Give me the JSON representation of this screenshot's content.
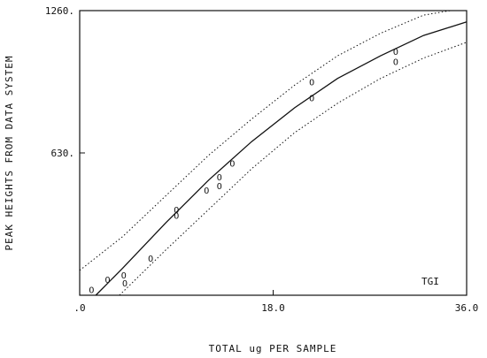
{
  "chart_data": {
    "type": "scatter",
    "title": "",
    "xlabel": "TOTAL ug PER SAMPLE",
    "ylabel": "PEAK HEIGHTS FROM DATA SYSTEM",
    "annotation": "TGI",
    "xlim": [
      0,
      36
    ],
    "ylim": [
      0,
      1260
    ],
    "x_ticks": [
      ".0",
      "18.0",
      "36.0"
    ],
    "x_tick_values": [
      0,
      18,
      36
    ],
    "y_ticks": [
      "630.",
      "1260."
    ],
    "y_tick_values": [
      630,
      1260
    ],
    "grid": false,
    "series": [
      {
        "marker": "O",
        "points": [
          {
            "x": 1.1,
            "y": 25
          },
          {
            "x": 2.6,
            "y": 70
          },
          {
            "x": 4.1,
            "y": 90
          },
          {
            "x": 4.2,
            "y": 55
          },
          {
            "x": 6.6,
            "y": 165
          },
          {
            "x": 9.0,
            "y": 380
          },
          {
            "x": 9.0,
            "y": 355
          },
          {
            "x": 11.8,
            "y": 465
          },
          {
            "x": 13.0,
            "y": 525
          },
          {
            "x": 13.0,
            "y": 485
          },
          {
            "x": 14.2,
            "y": 585
          },
          {
            "x": 21.6,
            "y": 945
          },
          {
            "x": 21.6,
            "y": 875
          },
          {
            "x": 29.4,
            "y": 1080
          },
          {
            "x": 29.4,
            "y": 1035
          }
        ]
      },
      {
        "style": "solid",
        "points": [
          {
            "x": 1.5,
            "y": 0
          },
          {
            "x": 4,
            "y": 120
          },
          {
            "x": 8,
            "y": 320
          },
          {
            "x": 12,
            "y": 510
          },
          {
            "x": 16,
            "y": 680
          },
          {
            "x": 20,
            "y": 830
          },
          {
            "x": 24,
            "y": 960
          },
          {
            "x": 28,
            "y": 1060
          },
          {
            "x": 32,
            "y": 1150
          },
          {
            "x": 36,
            "y": 1210
          }
        ]
      },
      {
        "style": "dotted",
        "points": [
          {
            "x": 0,
            "y": 110
          },
          {
            "x": 4,
            "y": 260
          },
          {
            "x": 8,
            "y": 440
          },
          {
            "x": 12,
            "y": 620
          },
          {
            "x": 16,
            "y": 780
          },
          {
            "x": 20,
            "y": 930
          },
          {
            "x": 24,
            "y": 1060
          },
          {
            "x": 28,
            "y": 1160
          },
          {
            "x": 32,
            "y": 1240
          },
          {
            "x": 34.5,
            "y": 1260
          }
        ]
      },
      {
        "style": "dotted",
        "points": [
          {
            "x": 3.7,
            "y": 0
          },
          {
            "x": 8,
            "y": 200
          },
          {
            "x": 12,
            "y": 380
          },
          {
            "x": 16,
            "y": 560
          },
          {
            "x": 20,
            "y": 720
          },
          {
            "x": 24,
            "y": 850
          },
          {
            "x": 28,
            "y": 960
          },
          {
            "x": 32,
            "y": 1050
          },
          {
            "x": 36,
            "y": 1120
          }
        ]
      }
    ]
  }
}
